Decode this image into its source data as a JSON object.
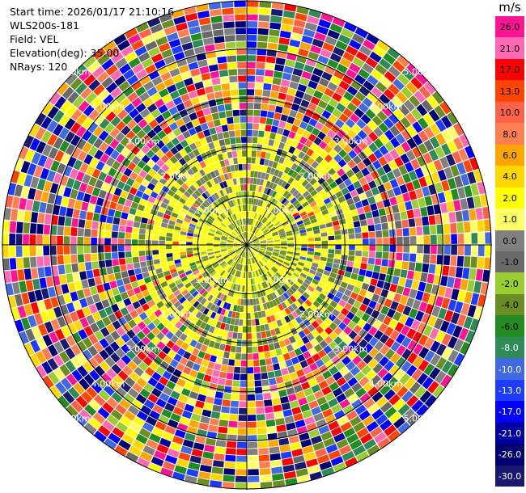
{
  "info": {
    "start_time": "Start time: 2026/01/17 21:10:16",
    "station": "WLS200s-181",
    "field": "Field: VEL",
    "elevation": "Elevation(deg): 35.00",
    "nrays": "NRays: 120"
  },
  "ppi": {
    "n_rays": 120,
    "max_range_km": 5.0,
    "ring_labels": [
      "1.00km",
      "2.00km",
      "3.00km",
      "4.00km",
      "5.00km"
    ],
    "colors": {
      "ring": "#000000",
      "label": "#ffffff"
    }
  },
  "colorbar": {
    "unit": "m/s",
    "levels": [
      {
        "label": "26.0",
        "color": "#ff1493"
      },
      {
        "label": "21.0",
        "color": "#ff69b4"
      },
      {
        "label": "17.0",
        "color": "#ff0000"
      },
      {
        "label": "13.0",
        "color": "#ff4500"
      },
      {
        "label": "10.0",
        "color": "#ff6347"
      },
      {
        "label": "8.0",
        "color": "#ff7f50"
      },
      {
        "label": "6.0",
        "color": "#ffa500"
      },
      {
        "label": "4.0",
        "color": "#ffd700"
      },
      {
        "label": "2.0",
        "color": "#ffff00"
      },
      {
        "label": "1.0",
        "color": "#ffff66"
      },
      {
        "label": "0.0",
        "color": "#808080"
      },
      {
        "label": "-1.0",
        "color": "#696969"
      },
      {
        "label": "-2.0",
        "color": "#9acd32"
      },
      {
        "label": "-4.0",
        "color": "#6b8e23"
      },
      {
        "label": "-6.0",
        "color": "#228b22"
      },
      {
        "label": "-8.0",
        "color": "#2e8b57"
      },
      {
        "label": "-10.0",
        "color": "#4169e1"
      },
      {
        "label": "-13.0",
        "color": "#1e3cff"
      },
      {
        "label": "-17.0",
        "color": "#0000ff"
      },
      {
        "label": "-21.0",
        "color": "#0000a0"
      },
      {
        "label": "-26.0",
        "color": "#000070"
      },
      {
        "label": "-30.0",
        "color": "#191970"
      }
    ]
  }
}
